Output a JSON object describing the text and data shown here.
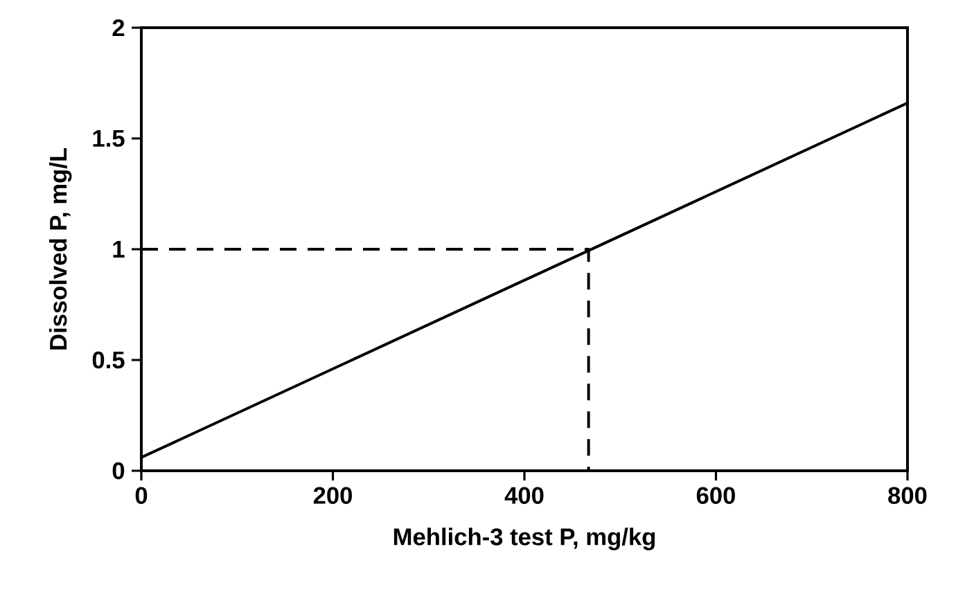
{
  "chart_data": {
    "type": "line",
    "xlabel": "Mehlich-3 test P, mg/kg",
    "ylabel": "Dissolved P, mg/L",
    "series": [
      {
        "x": [
          0,
          800
        ],
        "values": [
          0.06,
          1.66
        ],
        "color": "#000000",
        "line_style": "solid"
      },
      {
        "x": [
          0,
          467,
          467
        ],
        "values": [
          1,
          1,
          0
        ],
        "color": "#000000",
        "line_style": "dashed"
      }
    ],
    "xlim": [
      0,
      800
    ],
    "ylim": [
      0,
      2
    ],
    "xticks": [
      0,
      200,
      400,
      600,
      800
    ],
    "yticks": [
      0,
      0.5,
      1,
      1.5,
      2
    ]
  }
}
